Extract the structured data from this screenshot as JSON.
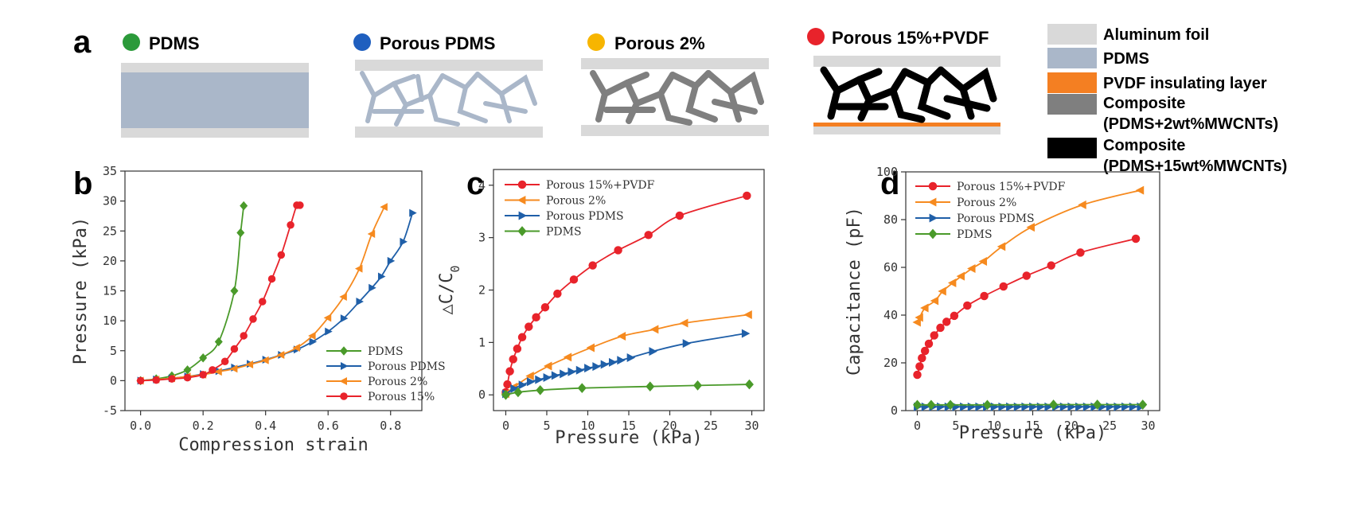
{
  "panels": {
    "a": {
      "label": "a"
    },
    "b": {
      "label": "b"
    },
    "c": {
      "label": "c"
    },
    "d": {
      "label": "d"
    }
  },
  "colors": {
    "foil": "#d9d9d9",
    "pdms_fill": "#aab7c9",
    "pvdf": "#f47f22",
    "composite_2": "#7f7f7f",
    "composite_15": "#000000",
    "red": "#e8232b",
    "orange": "#f68a1f",
    "blue": "#1f5fa8",
    "green": "#4a9a2a"
  },
  "schematic": {
    "samples": [
      {
        "name": "PDMS",
        "dot_color": "#2b9a3a",
        "fill": "pdms-solid"
      },
      {
        "name": "Porous PDMS",
        "dot_color": "#1f5fbf",
        "fill": "network-pdms"
      },
      {
        "name": "Porous 2%",
        "dot_color": "#f7b500",
        "fill": "network-2"
      },
      {
        "name": "Porous 15%+PVDF",
        "dot_color": "#e8232b",
        "fill": "network-15"
      }
    ],
    "legend": [
      {
        "text": "Aluminum foil",
        "swatch": "#d9d9d9"
      },
      {
        "text": "PDMS",
        "swatch": "#aab7c9"
      },
      {
        "text": "PVDF insulating layer",
        "swatch": "#f47f22"
      },
      {
        "text": "Composite",
        "text2": "(PDMS+2wt%MWCNTs)",
        "swatch": "#7f7f7f"
      },
      {
        "text": "Composite",
        "text2": "(PDMS+15wt%MWCNTs)",
        "swatch": "#000000"
      }
    ]
  },
  "chart_data": [
    {
      "panel": "b",
      "type": "line",
      "xlabel": "Compression strain",
      "ylabel": "Pressure (kPa)",
      "xlim": [
        -0.05,
        0.9
      ],
      "ylim": [
        -5,
        35
      ],
      "xticks": [
        0.0,
        0.2,
        0.4,
        0.6,
        0.8
      ],
      "xtick_labels": [
        "0.0",
        "0.2",
        "0.4",
        "0.6",
        "0.8"
      ],
      "yticks": [
        -5,
        0,
        5,
        10,
        15,
        20,
        25,
        30,
        35
      ],
      "legend_position": "bottom-right",
      "series": [
        {
          "name": "PDMS",
          "color": "#4a9a2a",
          "marker": "diamond",
          "x": [
            0.0,
            0.05,
            0.1,
            0.15,
            0.2,
            0.25,
            0.3,
            0.32,
            0.33
          ],
          "y": [
            0,
            0.3,
            0.8,
            1.8,
            3.8,
            6.5,
            15.0,
            24.7,
            29.2
          ]
        },
        {
          "name": "Porous PDMS",
          "color": "#1f5fa8",
          "marker": "triangle-right",
          "x": [
            0.0,
            0.05,
            0.1,
            0.15,
            0.2,
            0.25,
            0.3,
            0.35,
            0.4,
            0.45,
            0.5,
            0.55,
            0.6,
            0.65,
            0.7,
            0.74,
            0.77,
            0.8,
            0.84,
            0.87
          ],
          "y": [
            0,
            0.2,
            0.4,
            0.7,
            1.1,
            1.6,
            2.2,
            2.8,
            3.5,
            4.3,
            5.2,
            6.5,
            8.2,
            10.4,
            13.2,
            15.5,
            17.4,
            20.0,
            23.2,
            28.0
          ]
        },
        {
          "name": "Porous 2%",
          "color": "#f68a1f",
          "marker": "triangle-left",
          "x": [
            0.0,
            0.05,
            0.1,
            0.15,
            0.2,
            0.25,
            0.3,
            0.35,
            0.4,
            0.45,
            0.5,
            0.55,
            0.6,
            0.65,
            0.7,
            0.74,
            0.78
          ],
          "y": [
            0,
            0.2,
            0.4,
            0.7,
            1.0,
            1.5,
            2.0,
            2.7,
            3.4,
            4.3,
            5.5,
            7.5,
            10.5,
            14.0,
            18.7,
            24.5,
            29.0
          ]
        },
        {
          "name": "Porous 15%",
          "color": "#e8232b",
          "marker": "circle",
          "x": [
            0.0,
            0.05,
            0.1,
            0.15,
            0.2,
            0.23,
            0.27,
            0.3,
            0.33,
            0.36,
            0.39,
            0.42,
            0.45,
            0.48,
            0.5,
            0.51
          ],
          "y": [
            0,
            0.1,
            0.3,
            0.5,
            1.0,
            1.8,
            3.2,
            5.3,
            7.5,
            10.3,
            13.2,
            17.0,
            21.0,
            26.0,
            29.3,
            29.3
          ]
        }
      ]
    },
    {
      "panel": "c",
      "type": "line",
      "xlabel": "Pressure (kPa)",
      "ylabel_main": "△C/C",
      "ylabel_sub": "0",
      "xlim": [
        -1.5,
        31.5
      ],
      "ylim": [
        -0.3,
        4.3
      ],
      "xticks": [
        0,
        5,
        10,
        15,
        20,
        25,
        30
      ],
      "yticks": [
        0,
        1,
        2,
        3,
        4
      ],
      "legend_position": "top-left",
      "series": [
        {
          "name": "Porous 15%+PVDF",
          "color": "#e8232b",
          "marker": "circle",
          "x": [
            0,
            0.2,
            0.5,
            0.9,
            1.4,
            2.0,
            2.8,
            3.7,
            4.8,
            6.3,
            8.3,
            10.6,
            13.7,
            17.4,
            21.2,
            29.4
          ],
          "y": [
            0.05,
            0.2,
            0.45,
            0.68,
            0.88,
            1.1,
            1.3,
            1.48,
            1.67,
            1.93,
            2.2,
            2.47,
            2.76,
            3.05,
            3.42,
            3.8
          ]
        },
        {
          "name": "Porous 2%",
          "color": "#f68a1f",
          "marker": "triangle-left",
          "x": [
            0,
            1.0,
            3.0,
            5.2,
            7.6,
            10.4,
            14.2,
            18.2,
            21.8,
            29.6
          ],
          "y": [
            0.02,
            0.15,
            0.36,
            0.55,
            0.72,
            0.9,
            1.12,
            1.25,
            1.37,
            1.53
          ]
        },
        {
          "name": "Porous PDMS",
          "color": "#1f5fa8",
          "marker": "triangle-right",
          "x": [
            0,
            1.0,
            2.0,
            3.0,
            4.0,
            5.0,
            6.0,
            7.0,
            8.0,
            9.0,
            10.0,
            11.0,
            12.0,
            13.0,
            14.0,
            15.2,
            17.9,
            22.0,
            29.2
          ],
          "y": [
            0.02,
            0.12,
            0.19,
            0.25,
            0.29,
            0.33,
            0.37,
            0.4,
            0.44,
            0.47,
            0.51,
            0.54,
            0.58,
            0.62,
            0.66,
            0.71,
            0.83,
            0.98,
            1.17
          ]
        },
        {
          "name": "PDMS",
          "color": "#4a9a2a",
          "marker": "diamond",
          "x": [
            0,
            1.5,
            4.2,
            9.3,
            17.6,
            23.4,
            29.7
          ],
          "y": [
            0.0,
            0.05,
            0.09,
            0.13,
            0.16,
            0.18,
            0.2
          ]
        }
      ]
    },
    {
      "panel": "d",
      "type": "line",
      "xlabel": "Pressure (kPa)",
      "ylabel": "Capacitance (pF)",
      "xlim": [
        -1.5,
        31.5
      ],
      "ylim": [
        0,
        100
      ],
      "xticks": [
        0,
        5,
        10,
        15,
        20,
        25,
        30
      ],
      "yticks": [
        0,
        20,
        40,
        60,
        80,
        100
      ],
      "legend_position": "top-left",
      "series": [
        {
          "name": "Porous 15%+PVDF",
          "color": "#e8232b",
          "marker": "circle",
          "x": [
            0,
            0.3,
            0.6,
            1.0,
            1.5,
            2.2,
            3.0,
            3.8,
            4.8,
            6.5,
            8.7,
            11.2,
            14.2,
            17.4,
            21.2,
            28.4
          ],
          "y": [
            15,
            18.5,
            22,
            25,
            28,
            31.5,
            34.7,
            37.2,
            39.7,
            44,
            48,
            52,
            56.5,
            60.8,
            66.2,
            72
          ]
        },
        {
          "name": "Porous 2%",
          "color": "#f68a1f",
          "marker": "triangle-left",
          "x": [
            0,
            0.3,
            1.0,
            2.3,
            3.3,
            4.6,
            5.7,
            7.1,
            8.6,
            11.0,
            14.8,
            21.5,
            29.0
          ],
          "y": [
            37,
            39,
            43,
            46,
            50,
            53.5,
            56.3,
            59.5,
            62.5,
            68.7,
            76.8,
            86.2,
            92.3
          ]
        },
        {
          "name": "Porous PDMS",
          "color": "#1f5fa8",
          "marker": "triangle-right",
          "x": [
            0,
            1,
            2,
            3,
            4,
            5,
            6,
            7,
            8,
            9,
            10,
            11,
            12,
            13,
            14,
            15,
            16,
            17,
            18,
            19,
            20,
            21,
            22,
            23,
            24,
            25,
            26,
            27,
            28,
            29
          ],
          "y": [
            1.6,
            1.6,
            1.6,
            1.6,
            1.6,
            1.6,
            1.6,
            1.6,
            1.6,
            1.6,
            1.6,
            1.6,
            1.6,
            1.6,
            1.6,
            1.6,
            1.6,
            1.6,
            1.6,
            1.6,
            1.6,
            1.6,
            1.6,
            1.6,
            1.6,
            1.6,
            1.6,
            1.6,
            1.6,
            1.6
          ]
        },
        {
          "name": "PDMS",
          "color": "#4a9a2a",
          "marker": "diamond",
          "x": [
            0,
            1.8,
            4.3,
            9.1,
            17.7,
            23.4,
            29.3
          ],
          "y": [
            2.4,
            2.4,
            2.4,
            2.4,
            2.5,
            2.5,
            2.5
          ]
        }
      ]
    }
  ]
}
